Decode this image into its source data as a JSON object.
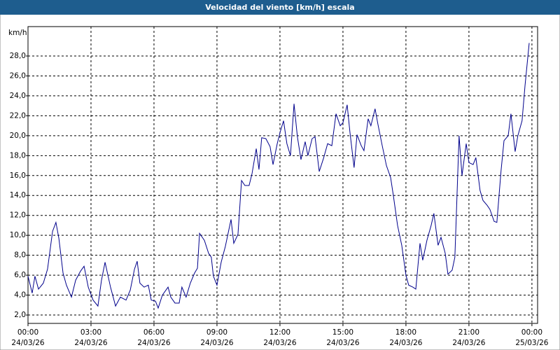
{
  "chart_data": {
    "type": "line",
    "title": "Velocidad del viento [km/h] escala",
    "y_unit": "km/h",
    "color": "#00008b",
    "grid": true,
    "x": [
      0,
      0.2,
      0.33,
      0.5,
      0.73,
      0.93,
      1.17,
      1.33,
      1.47,
      1.67,
      1.83,
      2.07,
      2.27,
      2.5,
      2.67,
      2.87,
      3.1,
      3.33,
      3.5,
      3.67,
      3.93,
      4.17,
      4.4,
      4.67,
      4.87,
      5.07,
      5.2,
      5.33,
      5.53,
      5.73,
      5.87,
      6.07,
      6.2,
      6.4,
      6.67,
      6.8,
      7.0,
      7.2,
      7.33,
      7.53,
      7.73,
      7.93,
      8.07,
      8.17,
      8.4,
      8.6,
      8.73,
      8.83,
      9.0,
      9.2,
      9.4,
      9.67,
      9.8,
      10.0,
      10.17,
      10.33,
      10.53,
      10.67,
      10.87,
      11.0,
      11.13,
      11.33,
      11.53,
      11.67,
      11.87,
      12.0,
      12.17,
      12.33,
      12.5,
      12.67,
      12.83,
      13.0,
      13.2,
      13.33,
      13.53,
      13.67,
      13.87,
      14.07,
      14.27,
      14.47,
      14.67,
      14.87,
      15.0,
      15.2,
      15.33,
      15.53,
      15.67,
      15.87,
      16.0,
      16.2,
      16.33,
      16.53,
      16.67,
      16.87,
      17.07,
      17.27,
      17.4,
      17.6,
      17.8,
      18.0,
      18.13,
      18.33,
      18.47,
      18.67,
      18.8,
      19.0,
      19.2,
      19.33,
      19.53,
      19.67,
      19.87,
      20.0,
      20.2,
      20.33,
      20.53,
      20.67,
      20.87,
      21.0,
      21.2,
      21.33,
      21.53,
      21.67,
      21.87,
      22.0,
      22.2,
      22.33,
      22.53,
      22.67,
      22.87,
      23.0,
      23.2,
      23.33,
      23.53,
      23.67,
      23.87
    ],
    "values": [
      5.9,
      4.2,
      5.9,
      4.6,
      5.2,
      6.6,
      10.4,
      11.3,
      9.7,
      6.2,
      5.0,
      3.8,
      5.5,
      6.4,
      6.9,
      4.8,
      3.5,
      2.9,
      5.5,
      7.3,
      4.8,
      2.9,
      3.8,
      3.5,
      4.5,
      6.6,
      7.4,
      5.2,
      4.8,
      5.0,
      3.5,
      3.4,
      2.7,
      4.0,
      4.8,
      3.8,
      3.2,
      3.2,
      4.8,
      3.8,
      5.2,
      6.2,
      6.7,
      10.2,
      9.5,
      8.2,
      7.8,
      5.9,
      5.0,
      7.3,
      8.9,
      11.6,
      9.2,
      10.1,
      15.5,
      15.0,
      15.0,
      16.2,
      18.7,
      16.6,
      19.8,
      19.7,
      18.9,
      17.1,
      19.2,
      20.3,
      21.5,
      19.2,
      18.0,
      23.2,
      19.9,
      17.6,
      19.4,
      18.0,
      19.7,
      19.9,
      16.4,
      17.7,
      19.2,
      19.0,
      22.2,
      21.0,
      21.3,
      23.1,
      20.4,
      16.8,
      20.1,
      19.0,
      18.5,
      21.7,
      21.0,
      22.7,
      21.1,
      19.0,
      17.0,
      15.8,
      14.0,
      11.0,
      9.0,
      6.0,
      5.0,
      4.8,
      4.6,
      9.2,
      7.5,
      9.5,
      11.0,
      12.2,
      9.0,
      9.8,
      8.2,
      6.1,
      6.5,
      7.8,
      20.0,
      16.0,
      19.2,
      17.3,
      17.1,
      17.8,
      14.5,
      13.5,
      13.0,
      12.6,
      11.4,
      11.3,
      16.5,
      19.5,
      20.0,
      22.2,
      18.4,
      20.0,
      21.5,
      25.0,
      29.3
    ],
    "xlim": [
      0,
      24.27
    ],
    "xticks": [
      {
        "value": 0,
        "label": "00:00"
      },
      {
        "value": 3,
        "label": "03:00"
      },
      {
        "value": 6,
        "label": "06:00"
      },
      {
        "value": 9,
        "label": "09:00"
      },
      {
        "value": 12,
        "label": "12:00"
      },
      {
        "value": 15,
        "label": "15:00"
      },
      {
        "value": 18,
        "label": "18:00"
      },
      {
        "value": 21,
        "label": "21:00"
      },
      {
        "value": 24,
        "label": "00:00"
      }
    ],
    "xtick_dates": [
      "24/03/26",
      "24/03/26",
      "24/03/26",
      "24/03/26",
      "24/03/26",
      "24/03/26",
      "24/03/26",
      "24/03/26",
      "25/03/26"
    ],
    "ylim": [
      1.16,
      30.95
    ],
    "yticks": [
      {
        "value": 2,
        "label": "2,0"
      },
      {
        "value": 4,
        "label": "4,0"
      },
      {
        "value": 6,
        "label": "6,0"
      },
      {
        "value": 8,
        "label": "8,0"
      },
      {
        "value": 10,
        "label": "10,0"
      },
      {
        "value": 12,
        "label": "12,0"
      },
      {
        "value": 14,
        "label": "14,0"
      },
      {
        "value": 16,
        "label": "16,0"
      },
      {
        "value": 18,
        "label": "18,0"
      },
      {
        "value": 20,
        "label": "20,0"
      },
      {
        "value": 22,
        "label": "22,0"
      },
      {
        "value": 24,
        "label": "24,0"
      },
      {
        "value": 26,
        "label": "26,0"
      },
      {
        "value": 28,
        "label": "28,0"
      }
    ]
  }
}
